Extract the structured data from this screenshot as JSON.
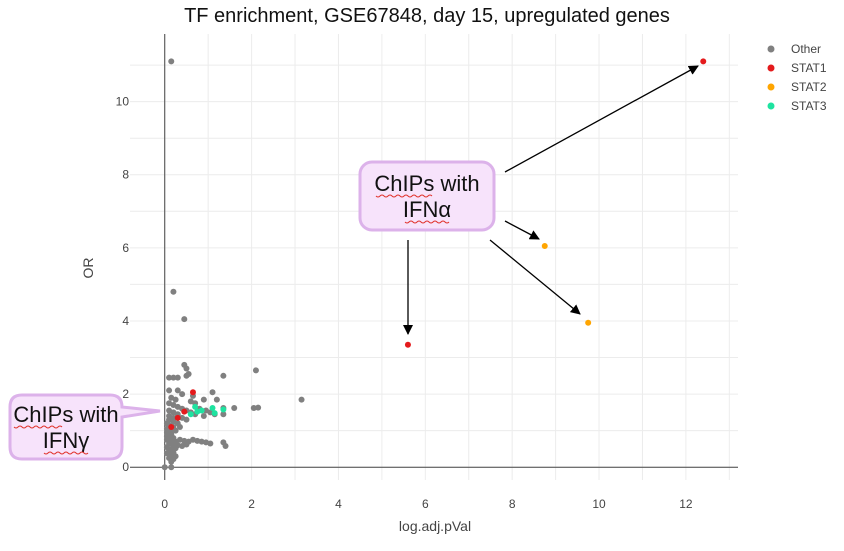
{
  "chart_data": {
    "type": "scatter",
    "title": "TF enrichment, GSE67848, day 15, upregulated genes",
    "xlabel": "log.adj.pVal",
    "ylabel": "OR",
    "xlim": [
      -0.8,
      13.2
    ],
    "ylim": [
      -0.35,
      11.85
    ],
    "xticks": [
      0,
      2,
      4,
      6,
      8,
      10,
      12
    ],
    "yticks": [
      0,
      2,
      4,
      6,
      8,
      10
    ],
    "grid": true,
    "legend_position": "top-right",
    "series": [
      {
        "name": "Other",
        "color": "#808080",
        "points": [
          [
            0.15,
            11.1
          ],
          [
            0.2,
            4.8
          ],
          [
            0.45,
            4.05
          ],
          [
            0.45,
            2.8
          ],
          [
            0.5,
            2.7
          ],
          [
            0.5,
            2.5
          ],
          [
            0.55,
            2.55
          ],
          [
            0.3,
            2.45
          ],
          [
            0.2,
            2.45
          ],
          [
            0.1,
            2.45
          ],
          [
            1.35,
            2.5
          ],
          [
            2.1,
            2.65
          ],
          [
            2.05,
            1.62
          ],
          [
            2.15,
            1.63
          ],
          [
            3.15,
            1.85
          ],
          [
            0.9,
            1.85
          ],
          [
            1.1,
            2.05
          ],
          [
            1.2,
            1.85
          ],
          [
            1.35,
            1.62
          ],
          [
            1.6,
            1.62
          ],
          [
            0.95,
            1.55
          ],
          [
            1.05,
            1.5
          ],
          [
            1.15,
            1.45
          ],
          [
            1.35,
            1.45
          ],
          [
            0.6,
            1.8
          ],
          [
            0.7,
            1.75
          ],
          [
            0.65,
            1.95
          ],
          [
            0.4,
            2.0
          ],
          [
            0.3,
            2.1
          ],
          [
            0.1,
            2.1
          ],
          [
            0.15,
            1.9
          ],
          [
            0.25,
            1.85
          ],
          [
            0.1,
            1.75
          ],
          [
            0.2,
            1.7
          ],
          [
            0.3,
            1.65
          ],
          [
            0.4,
            1.6
          ],
          [
            0.5,
            1.55
          ],
          [
            0.6,
            1.5
          ],
          [
            0.7,
            1.45
          ],
          [
            0.8,
            1.6
          ],
          [
            0.9,
            1.4
          ],
          [
            0.1,
            1.55
          ],
          [
            0.2,
            1.5
          ],
          [
            0.3,
            1.45
          ],
          [
            0.1,
            1.4
          ],
          [
            0.2,
            1.35
          ],
          [
            0.4,
            1.35
          ],
          [
            0.5,
            1.3
          ],
          [
            0.1,
            1.3
          ],
          [
            0.2,
            1.25
          ],
          [
            0.3,
            1.2
          ],
          [
            0.05,
            1.2
          ],
          [
            0.1,
            1.15
          ],
          [
            0.2,
            1.1
          ],
          [
            0.35,
            1.1
          ],
          [
            0.05,
            1.05
          ],
          [
            0.15,
            1.0
          ],
          [
            0.25,
            1.0
          ],
          [
            0.05,
            0.95
          ],
          [
            0.15,
            0.9
          ],
          [
            0.05,
            0.85
          ],
          [
            0.1,
            0.8
          ],
          [
            0.2,
            0.8
          ],
          [
            0.05,
            0.75
          ],
          [
            0.15,
            0.7
          ],
          [
            0.25,
            0.7
          ],
          [
            0.35,
            0.75
          ],
          [
            0.45,
            0.72
          ],
          [
            0.55,
            0.7
          ],
          [
            0.65,
            0.75
          ],
          [
            0.75,
            0.72
          ],
          [
            0.85,
            0.7
          ],
          [
            0.95,
            0.68
          ],
          [
            1.05,
            0.65
          ],
          [
            1.35,
            0.68
          ],
          [
            1.4,
            0.58
          ],
          [
            0.1,
            0.65
          ],
          [
            0.2,
            0.6
          ],
          [
            0.3,
            0.6
          ],
          [
            0.4,
            0.58
          ],
          [
            0.5,
            0.62
          ],
          [
            0.05,
            0.55
          ],
          [
            0.15,
            0.5
          ],
          [
            0.25,
            0.52
          ],
          [
            0.1,
            0.45
          ],
          [
            0.2,
            0.4
          ],
          [
            0.05,
            0.38
          ],
          [
            0.15,
            0.33
          ],
          [
            0.25,
            0.3
          ],
          [
            0.1,
            0.25
          ],
          [
            0.2,
            0.22
          ],
          [
            0.15,
            0.15
          ],
          [
            0.0,
            0.0
          ],
          [
            0.15,
            0.0
          ]
        ]
      },
      {
        "name": "STAT1",
        "color": "#e41a1c",
        "points": [
          [
            12.4,
            11.1
          ],
          [
            5.6,
            3.35
          ],
          [
            0.65,
            2.05
          ],
          [
            0.45,
            1.52
          ],
          [
            0.3,
            1.35
          ],
          [
            0.15,
            1.1
          ]
        ]
      },
      {
        "name": "STAT2",
        "color": "#ffa500",
        "points": [
          [
            8.75,
            6.05
          ],
          [
            9.75,
            3.95
          ]
        ]
      },
      {
        "name": "STAT3",
        "color": "#1ee3a0",
        "points": [
          [
            1.1,
            1.62
          ],
          [
            1.35,
            1.58
          ],
          [
            1.15,
            1.48
          ],
          [
            0.75,
            1.52
          ],
          [
            0.6,
            1.45
          ],
          [
            0.85,
            1.55
          ],
          [
            0.7,
            1.65
          ]
        ]
      }
    ],
    "annotations": [
      {
        "id": "ifna",
        "text_line1": "ChIPs with",
        "text_line2": "IFNα"
      },
      {
        "id": "ifng",
        "text_line1": "ChIPs with",
        "text_line2": "IFNγ"
      }
    ]
  }
}
